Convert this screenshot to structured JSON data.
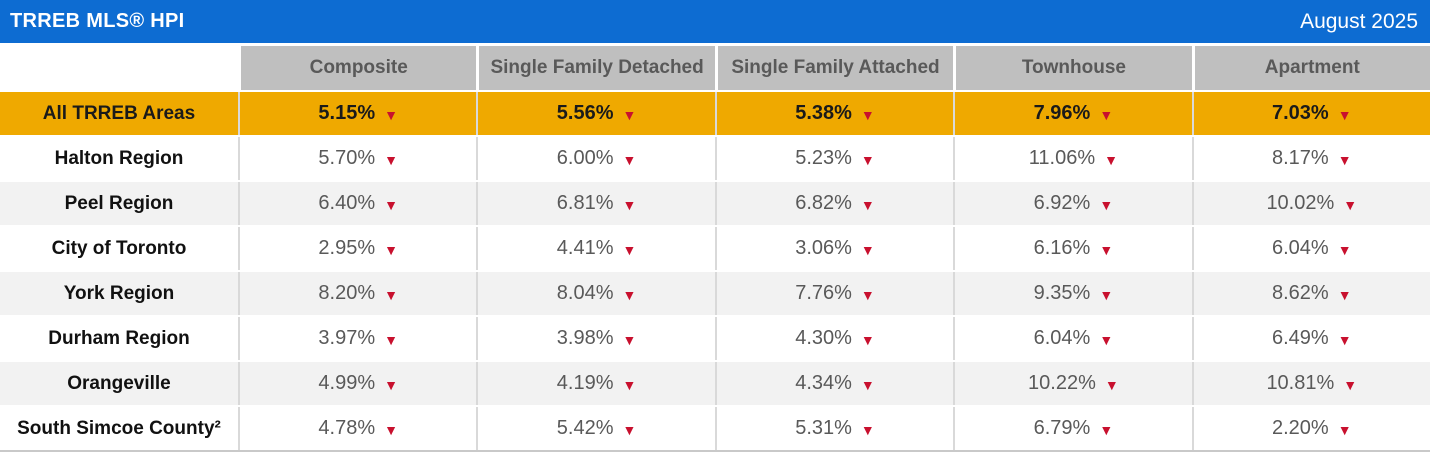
{
  "header": {
    "title": "TRREB MLS® HPI",
    "date": "August 2025"
  },
  "columns": [
    "Composite",
    "Single Family Detached",
    "Single Family Attached",
    "Townhouse",
    "Apartment"
  ],
  "rows": [
    {
      "label": "All TRREB Areas",
      "highlight": true,
      "values": [
        "5.15%",
        "5.56%",
        "5.38%",
        "7.96%",
        "7.03%"
      ],
      "trends": [
        "down",
        "down",
        "down",
        "down",
        "down"
      ]
    },
    {
      "label": "Halton Region",
      "highlight": false,
      "values": [
        "5.70%",
        "6.00%",
        "5.23%",
        "11.06%",
        "8.17%"
      ],
      "trends": [
        "down",
        "down",
        "down",
        "down",
        "down"
      ]
    },
    {
      "label": "Peel Region",
      "highlight": false,
      "values": [
        "6.40%",
        "6.81%",
        "6.82%",
        "6.92%",
        "10.02%"
      ],
      "trends": [
        "down",
        "down",
        "down",
        "down",
        "down"
      ]
    },
    {
      "label": "City of Toronto",
      "highlight": false,
      "values": [
        "2.95%",
        "4.41%",
        "3.06%",
        "6.16%",
        "6.04%"
      ],
      "trends": [
        "down",
        "down",
        "down",
        "down",
        "down"
      ]
    },
    {
      "label": "York Region",
      "highlight": false,
      "values": [
        "8.20%",
        "8.04%",
        "7.76%",
        "9.35%",
        "8.62%"
      ],
      "trends": [
        "down",
        "down",
        "down",
        "down",
        "down"
      ]
    },
    {
      "label": "Durham Region",
      "highlight": false,
      "values": [
        "3.97%",
        "3.98%",
        "4.30%",
        "6.04%",
        "6.49%"
      ],
      "trends": [
        "down",
        "down",
        "down",
        "down",
        "down"
      ]
    },
    {
      "label": "Orangeville",
      "highlight": false,
      "values": [
        "4.99%",
        "4.19%",
        "4.34%",
        "10.22%",
        "10.81%"
      ],
      "trends": [
        "down",
        "down",
        "down",
        "down",
        "down"
      ]
    },
    {
      "label": "South Simcoe County²",
      "highlight": false,
      "values": [
        "4.78%",
        "5.42%",
        "5.31%",
        "6.79%",
        "2.20%"
      ],
      "trends": [
        "down",
        "down",
        "down",
        "down",
        "down"
      ]
    }
  ],
  "icons": {
    "trend_down": "▼"
  },
  "colors": {
    "titlebar_blue": "#0d6cd2",
    "highlight_orange": "#efa900",
    "column_header_gray": "#bfbfbf",
    "alt_row_gray": "#f2f2f2",
    "value_text_gray": "#595959",
    "trend_red": "#c8102e"
  },
  "chart_data": {
    "type": "table",
    "title": "TRREB MLS® HPI",
    "period": "August 2025",
    "columns": [
      "Composite",
      "Single Family Detached",
      "Single Family Attached",
      "Townhouse",
      "Apartment"
    ],
    "unit": "percent change, all declines (down arrows)",
    "rows": [
      {
        "region": "All TRREB Areas",
        "values_pct": [
          5.15,
          5.56,
          5.38,
          7.96,
          7.03
        ],
        "direction": "down"
      },
      {
        "region": "Halton Region",
        "values_pct": [
          5.7,
          6.0,
          5.23,
          11.06,
          8.17
        ],
        "direction": "down"
      },
      {
        "region": "Peel Region",
        "values_pct": [
          6.4,
          6.81,
          6.82,
          6.92,
          10.02
        ],
        "direction": "down"
      },
      {
        "region": "City of Toronto",
        "values_pct": [
          2.95,
          4.41,
          3.06,
          6.16,
          6.04
        ],
        "direction": "down"
      },
      {
        "region": "York Region",
        "values_pct": [
          8.2,
          8.04,
          7.76,
          9.35,
          8.62
        ],
        "direction": "down"
      },
      {
        "region": "Durham Region",
        "values_pct": [
          3.97,
          3.98,
          4.3,
          6.04,
          6.49
        ],
        "direction": "down"
      },
      {
        "region": "Orangeville",
        "values_pct": [
          4.99,
          4.19,
          4.34,
          10.22,
          10.81
        ],
        "direction": "down"
      },
      {
        "region": "South Simcoe County²",
        "values_pct": [
          4.78,
          5.42,
          5.31,
          6.79,
          2.2
        ],
        "direction": "down"
      }
    ]
  }
}
